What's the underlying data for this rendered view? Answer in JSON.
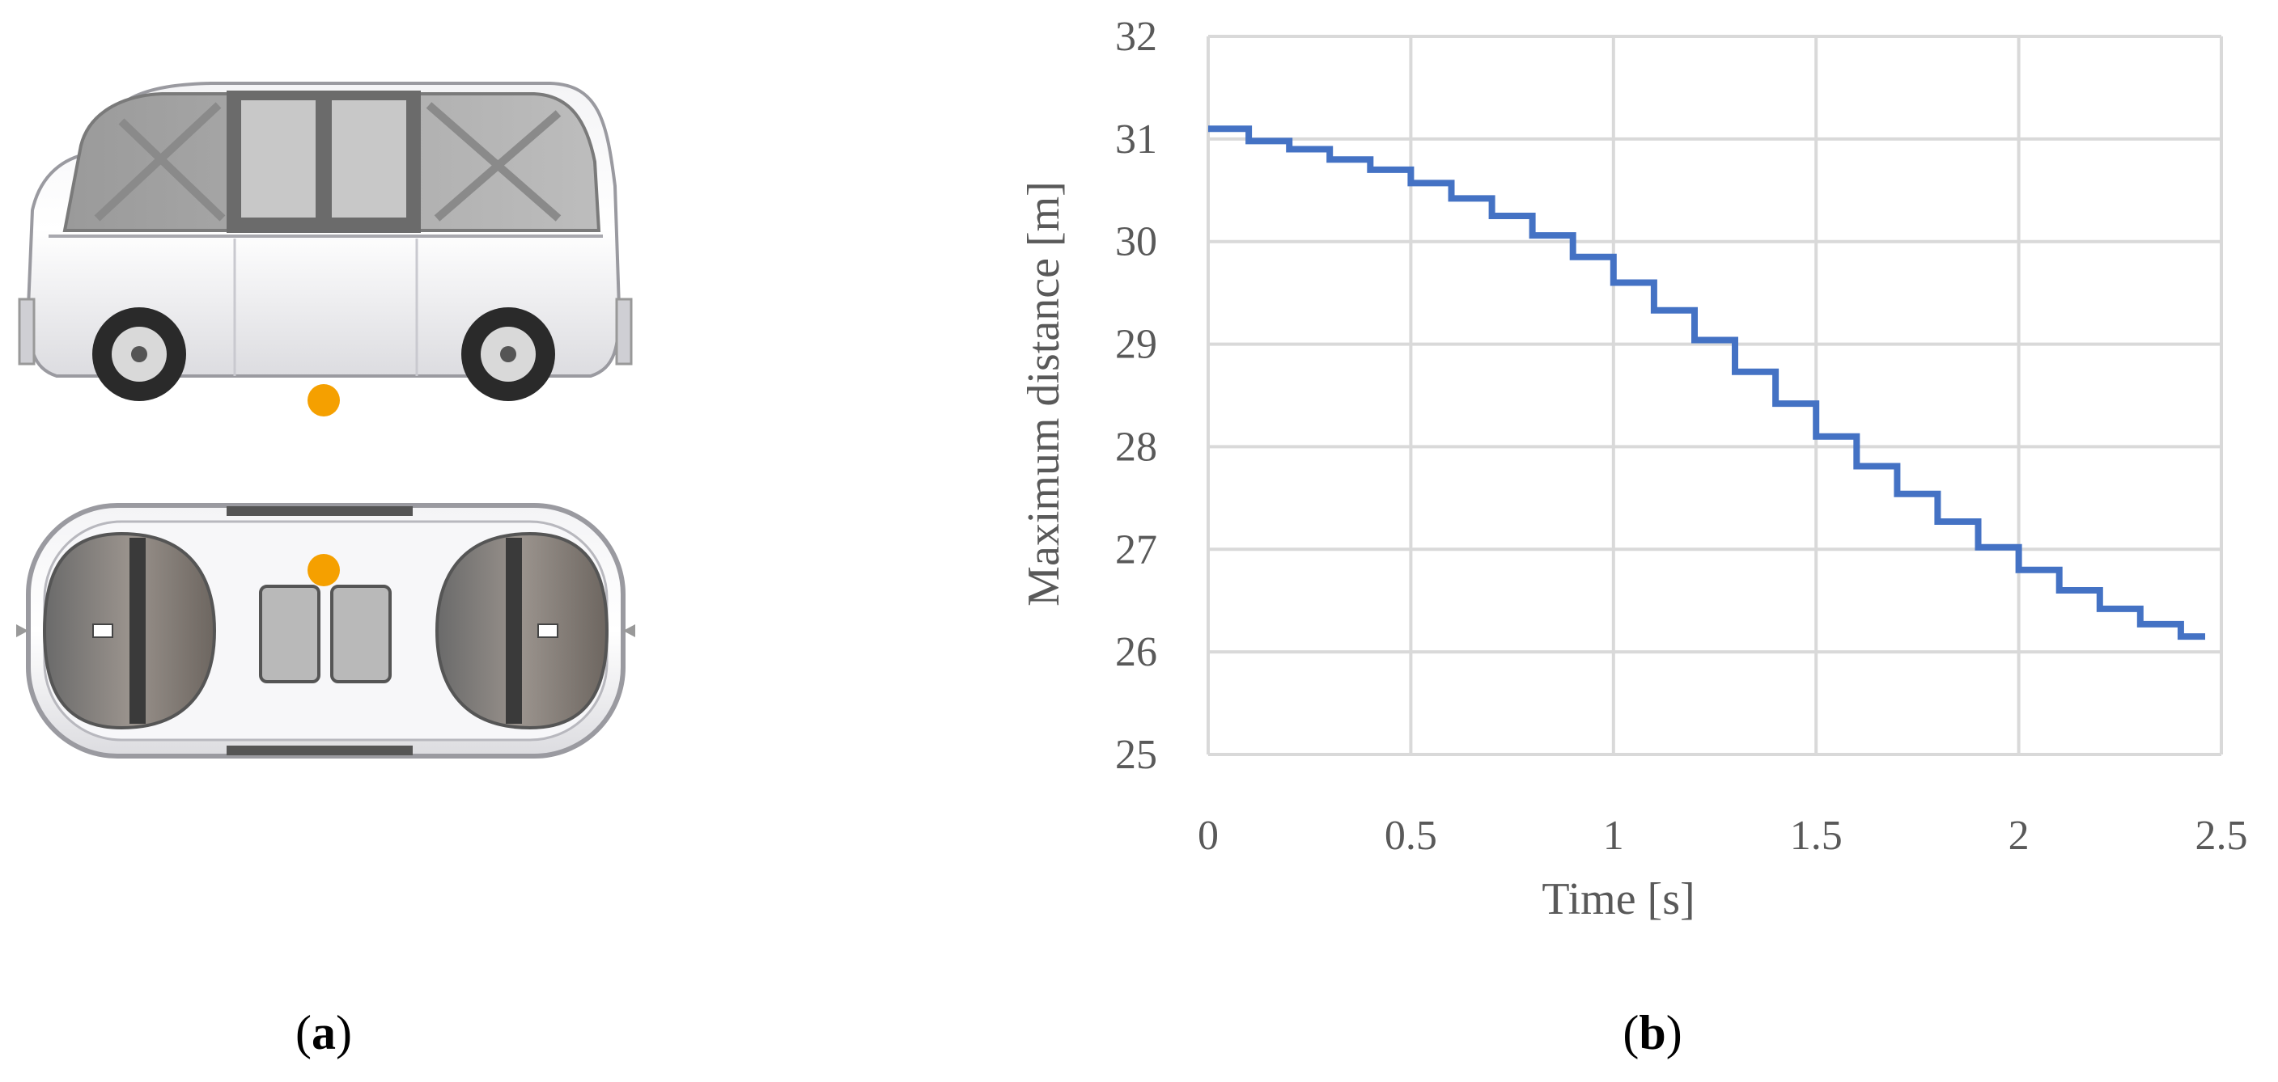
{
  "panels": {
    "a": {
      "open": "(",
      "letter": "a",
      "close": ")"
    },
    "b": {
      "open": "(",
      "letter": "b",
      "close": ")"
    }
  },
  "shuttle_illustration": {
    "views": [
      "side",
      "top"
    ],
    "marker_color": "#F5A000"
  },
  "chart_data": {
    "type": "line",
    "title": "",
    "xlabel": "Time [s]",
    "ylabel": "Maximum distance [m]",
    "xlim": [
      0,
      2.5
    ],
    "ylim": [
      25,
      32
    ],
    "xticks": [
      0,
      0.5,
      1,
      1.5,
      2,
      2.5
    ],
    "xtick_labels": [
      "0",
      "0.5",
      "1",
      "1.5",
      "2",
      "2.5"
    ],
    "yticks": [
      25,
      26,
      27,
      28,
      29,
      30,
      31,
      32
    ],
    "ytick_labels": [
      "25",
      "26",
      "27",
      "28",
      "29",
      "30",
      "31",
      "32"
    ],
    "grid": true,
    "legend": false,
    "step": true,
    "series": [
      {
        "color": "#4472C4",
        "x": [
          0.0,
          0.1,
          0.2,
          0.3,
          0.4,
          0.5,
          0.6,
          0.7,
          0.8,
          0.9,
          1.0,
          1.1,
          1.2,
          1.3,
          1.4,
          1.5,
          1.6,
          1.7,
          1.8,
          1.9,
          2.0,
          2.1,
          2.2,
          2.3,
          2.4
        ],
        "y": [
          31.1,
          30.98,
          30.9,
          30.8,
          30.7,
          30.57,
          30.42,
          30.25,
          30.06,
          29.85,
          29.6,
          29.33,
          29.04,
          28.73,
          28.42,
          28.1,
          27.81,
          27.54,
          27.27,
          27.02,
          26.8,
          26.6,
          26.42,
          26.27,
          26.15
        ],
        "x_end": 2.46
      }
    ]
  }
}
